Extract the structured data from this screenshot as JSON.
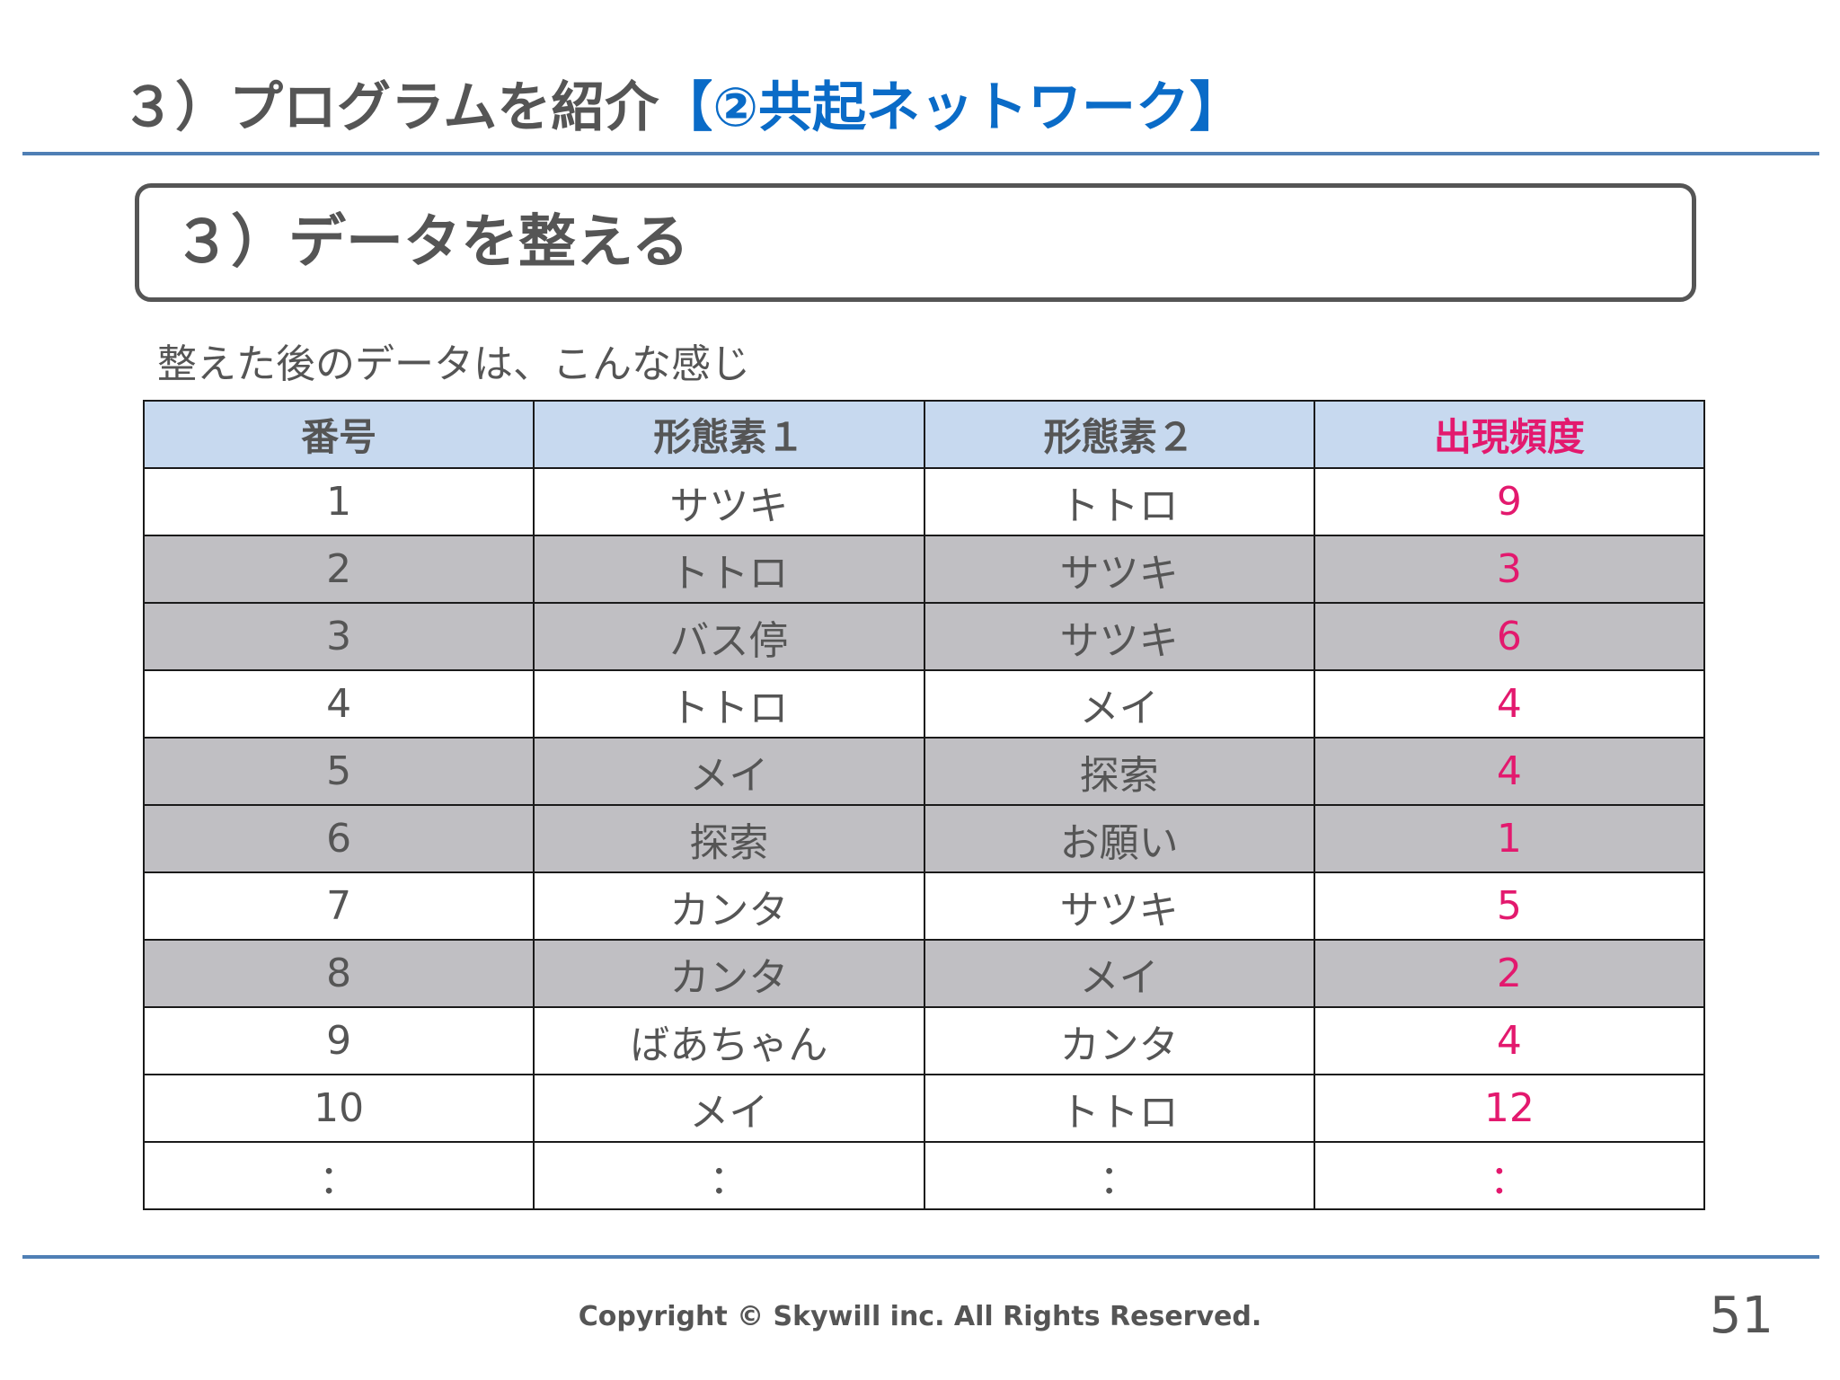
{
  "slide": {
    "title_main": "３）プログラムを紹介",
    "title_accent": "【②共起ネットワーク】",
    "section_heading": "３）データを整える",
    "intro_text": "整えた後のデータは、こんな感じ"
  },
  "table": {
    "headers": [
      "番号",
      "形態素１",
      "形態素２",
      "出現頻度"
    ],
    "rows": [
      {
        "no": "1",
        "m1": "サツキ",
        "m2": "トトロ",
        "freq": "9",
        "shaded": false
      },
      {
        "no": "2",
        "m1": "トトロ",
        "m2": "サツキ",
        "freq": "3",
        "shaded": true
      },
      {
        "no": "3",
        "m1": "バス停",
        "m2": "サツキ",
        "freq": "6",
        "shaded": true
      },
      {
        "no": "4",
        "m1": "トトロ",
        "m2": "メイ",
        "freq": "4",
        "shaded": false
      },
      {
        "no": "5",
        "m1": "メイ",
        "m2": "探索",
        "freq": "4",
        "shaded": true
      },
      {
        "no": "6",
        "m1": "探索",
        "m2": "お願い",
        "freq": "1",
        "shaded": true
      },
      {
        "no": "7",
        "m1": "カンタ",
        "m2": "サツキ",
        "freq": "5",
        "shaded": false
      },
      {
        "no": "8",
        "m1": "カンタ",
        "m2": "メイ",
        "freq": "2",
        "shaded": true
      },
      {
        "no": "9",
        "m1": "ばあちゃん",
        "m2": "カンタ",
        "freq": "4",
        "shaded": false
      },
      {
        "no": "10",
        "m1": "メイ",
        "m2": "トトロ",
        "freq": "12",
        "shaded": false
      },
      {
        "no": "：",
        "m1": "：",
        "m2": "：",
        "freq": "：",
        "shaded": false
      }
    ]
  },
  "footer": {
    "copyright": "Copyright © Skywill inc. All Rights Reserved.",
    "page_number": "51"
  },
  "colors": {
    "accent_blue": "#0a6bc7",
    "frequency_pink": "#e3196e",
    "header_fill": "#c7d9ef",
    "row_shade": "#c0bfc3",
    "rule_blue": "#4f7fb5"
  }
}
